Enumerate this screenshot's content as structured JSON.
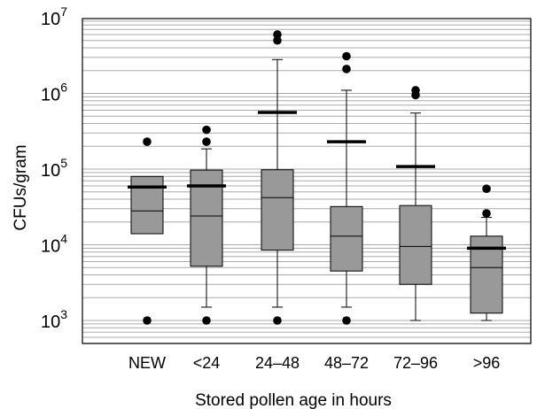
{
  "chart_data": {
    "type": "box",
    "xlabel": "Stored pollen age in hours",
    "ylabel": "CFUs/gram",
    "yscale": "log",
    "ylim": [
      500,
      10000000
    ],
    "y_ticks": [
      {
        "value": 1000,
        "base": "10",
        "exp": "3"
      },
      {
        "value": 10000,
        "base": "10",
        "exp": "4"
      },
      {
        "value": 100000,
        "base": "10",
        "exp": "5"
      },
      {
        "value": 1000000,
        "base": "10",
        "exp": "6"
      },
      {
        "value": 10000000,
        "base": "10",
        "exp": "7"
      }
    ],
    "grid": true,
    "colors": {
      "box": "#999999",
      "mean": "#000000",
      "grid": "#aaaaaa"
    },
    "categories": [
      "NEW",
      "<24",
      "24–48",
      "48–72",
      "72–96",
      ">96"
    ],
    "boxes": [
      {
        "category": "NEW",
        "whisker_low": null,
        "q1": 14000,
        "median": 28000,
        "q3": 80000,
        "whisker_high": null,
        "mean": 58000,
        "outliers": [
          230000,
          1000
        ]
      },
      {
        "category": "<24",
        "whisker_low": 1500,
        "q1": 5200,
        "median": 24000,
        "q3": 97000,
        "whisker_high": 185000,
        "mean": 60000,
        "outliers": [
          330000,
          230000,
          1000
        ]
      },
      {
        "category": "24–48",
        "whisker_low": 1500,
        "q1": 8500,
        "median": 42000,
        "q3": 98000,
        "whisker_high": 2800000,
        "mean": 560000,
        "outliers": [
          6000000,
          5000000,
          1000
        ]
      },
      {
        "category": "48–72",
        "whisker_low": 1500,
        "q1": 4500,
        "median": 13000,
        "q3": 32000,
        "whisker_high": 1100000,
        "mean": 230000,
        "outliers": [
          3100000,
          2100000,
          1000
        ]
      },
      {
        "category": "72–96",
        "whisker_low": 1000,
        "q1": 3000,
        "median": 9500,
        "q3": 33000,
        "whisker_high": 550000,
        "mean": 108000,
        "outliers": [
          1100000,
          950000
        ]
      },
      {
        "category": ">96",
        "whisker_low": 1000,
        "q1": 1250,
        "median": 5000,
        "q3": 13000,
        "whisker_high": 23000,
        "mean": 9000,
        "outliers": [
          55000,
          26000
        ]
      }
    ]
  }
}
